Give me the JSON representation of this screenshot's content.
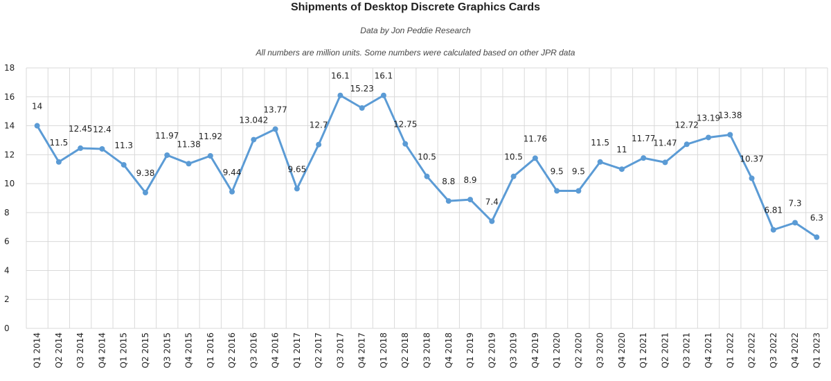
{
  "chart_data": {
    "type": "line",
    "title": "Shipments of Desktop Discrete Graphics Cards",
    "subtitle": "Data by Jon Peddie Research",
    "note": "All numbers are million units. Some numbers were calculated based on other JPR data",
    "xlabel": "",
    "ylabel": "",
    "ylim": [
      0,
      18
    ],
    "yticks": [
      0,
      2,
      4,
      6,
      8,
      10,
      12,
      14,
      16,
      18
    ],
    "grid": true,
    "color": "#5b9bd5",
    "categories": [
      "Q1 2014",
      "Q2 2014",
      "Q3 2014",
      "Q4 2014",
      "Q1 2015",
      "Q2 2015",
      "Q3 2015",
      "Q4 2015",
      "Q1 2016",
      "Q2 2016",
      "Q3 2016",
      "Q4 2016",
      "Q1 2017",
      "Q2 2017",
      "Q3 2017",
      "Q4 2017",
      "Q1 2018",
      "Q2 2018",
      "Q3 2018",
      "Q4 2018",
      "Q1 2019",
      "Q2 2019",
      "Q3 2019",
      "Q4 2019",
      "Q1 2020",
      "Q2 2020",
      "Q3 2020",
      "Q4 2020",
      "Q1 2021",
      "Q2 2021",
      "Q3 2021",
      "Q4 2021",
      "Q1 2022",
      "Q2 2022",
      "Q3 2022",
      "Q4 2022",
      "Q1 2023"
    ],
    "values": [
      14,
      11.5,
      12.45,
      12.4,
      11.3,
      9.38,
      11.97,
      11.38,
      11.92,
      9.44,
      13.042,
      13.77,
      9.65,
      12.7,
      16.1,
      15.23,
      16.1,
      12.75,
      10.5,
      8.8,
      8.9,
      7.4,
      10.5,
      11.76,
      9.5,
      9.5,
      11.5,
      11,
      11.77,
      11.47,
      12.72,
      13.19,
      13.38,
      10.37,
      6.81,
      7.3,
      6.3
    ],
    "labels": [
      "14",
      "11.5",
      "12.45",
      "12.4",
      "11.3",
      "9.38",
      "11.97",
      "11.38",
      "11.92",
      "9.44",
      "13.042",
      "13.77",
      "9.65",
      "12.7",
      "16.1",
      "15.23",
      "16.1",
      "12.75",
      "10.5",
      "8.8",
      "8.9",
      "7.4",
      "10.5",
      "11.76",
      "9.5",
      "9.5",
      "11.5",
      "11",
      "11.77",
      "11.47",
      "12.72",
      "13.19",
      "13.38",
      "10.37",
      "6.81",
      "7.3",
      "6.3"
    ]
  }
}
